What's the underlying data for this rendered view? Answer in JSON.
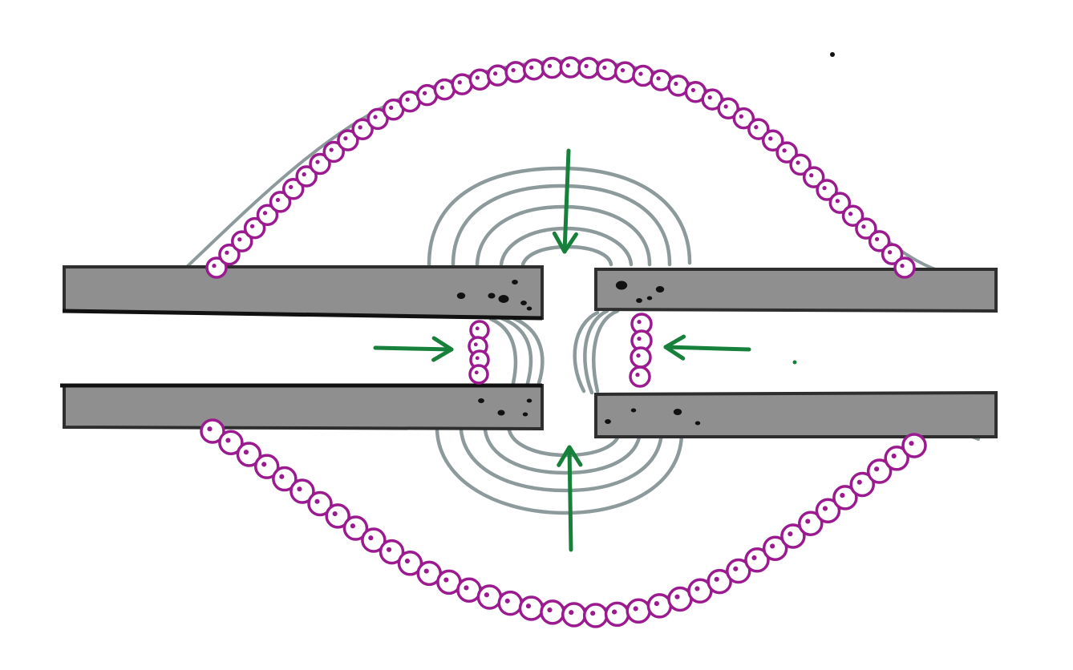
{
  "colors": {
    "bone_fill": "#8f8f8f",
    "bone_outline": "#2e2e2e",
    "hull_outline": "#8d9a9c",
    "cell_outline": "#9b1a8f",
    "field_lines": "#8d9a9c",
    "arrows": "#17803a",
    "specks": "#111111"
  },
  "elements": {
    "bone_segments": [
      "upper-left",
      "lower-left",
      "upper-right",
      "lower-right"
    ],
    "cell_layers": [
      "upper-hull-cells",
      "lower-hull-cells",
      "left-gap-cells",
      "right-gap-cells"
    ],
    "field_line_groups": [
      "top",
      "bottom",
      "left",
      "right"
    ],
    "arrows": [
      "down",
      "up",
      "right",
      "left"
    ],
    "icons": {
      "cell": "circle-cell-icon",
      "arrow": "arrow-icon"
    }
  }
}
